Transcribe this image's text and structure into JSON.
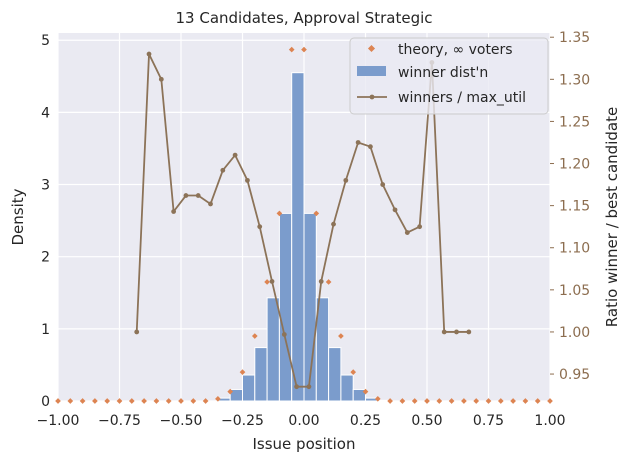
{
  "chart_data": {
    "type": "bar",
    "title": "13 Candidates, Approval Strategic",
    "xlabel": "Issue position",
    "ylabel": "Density",
    "y2label": "Ratio winner / best candidate",
    "xlim": [
      -1.0,
      1.0
    ],
    "ylim": [
      0,
      5.1
    ],
    "y2lim": [
      0.918,
      1.355
    ],
    "x_ticks": [
      "−1.00",
      "−0.75",
      "−0.50",
      "−0.25",
      "0.00",
      "0.25",
      "0.50",
      "0.75",
      "1.00"
    ],
    "y_ticks": [
      "0",
      "1",
      "2",
      "3",
      "4",
      "5"
    ],
    "y2_ticks": [
      "0.95",
      "1.00",
      "1.05",
      "1.10",
      "1.15",
      "1.20",
      "1.25",
      "1.30",
      "1.35"
    ],
    "grid": true,
    "legend_position": "top-right",
    "colors": {
      "bar": "#7b9ccc",
      "theory": "#dd8452",
      "line": "#8c7358",
      "background": "#eaeaf2",
      "right_axis": "#8c6d4f"
    },
    "series": [
      {
        "name": "theory, ∞ voters",
        "kind": "scatter",
        "axis": "left",
        "x": [
          -1.0,
          -0.95,
          -0.9,
          -0.85,
          -0.8,
          -0.75,
          -0.7,
          -0.65,
          -0.6,
          -0.55,
          -0.5,
          -0.45,
          -0.4,
          -0.35,
          -0.3,
          -0.25,
          -0.2,
          -0.15,
          -0.1,
          -0.05,
          0.0,
          0.05,
          0.1,
          0.15,
          0.2,
          0.25,
          0.3,
          0.35,
          0.4,
          0.45,
          0.5,
          0.55,
          0.6,
          0.65,
          0.7,
          0.75,
          0.8,
          0.85,
          0.9,
          0.95,
          1.0
        ],
        "y": [
          0,
          0,
          0,
          0,
          0,
          0,
          0,
          0,
          0,
          0,
          0,
          0,
          0,
          0.03,
          0.13,
          0.4,
          0.9,
          1.65,
          2.6,
          4.87,
          4.87,
          2.6,
          1.65,
          0.9,
          0.4,
          0.13,
          0.03,
          0,
          0,
          0,
          0,
          0,
          0,
          0,
          0,
          0,
          0,
          0,
          0,
          0,
          0
        ]
      },
      {
        "name": "winner dist'n",
        "kind": "bar",
        "axis": "left",
        "bin_edges": [
          -0.35,
          -0.3,
          -0.25,
          -0.2,
          -0.15,
          -0.1,
          -0.05,
          0.0,
          0.05,
          0.1,
          0.15,
          0.2,
          0.25,
          0.3,
          0.35
        ],
        "values": [
          0.04,
          0.16,
          0.36,
          0.74,
          1.43,
          2.6,
          4.55,
          2.6,
          1.43,
          0.74,
          0.36,
          0.16,
          0.04,
          0.01
        ]
      },
      {
        "name": "winners / max_util",
        "kind": "line",
        "axis": "right",
        "x": [
          -0.68,
          -0.63,
          -0.58,
          -0.53,
          -0.48,
          -0.43,
          -0.38,
          -0.33,
          -0.28,
          -0.23,
          -0.18,
          -0.13,
          -0.08,
          -0.03,
          0.02,
          0.07,
          0.12,
          0.17,
          0.22,
          0.27,
          0.32,
          0.37,
          0.42,
          0.47,
          0.52,
          0.57,
          0.62,
          0.67
        ],
        "y": [
          1.0,
          1.33,
          1.3,
          1.143,
          1.162,
          1.162,
          1.152,
          1.192,
          1.21,
          1.18,
          1.125,
          1.06,
          0.997,
          0.935,
          0.935,
          1.06,
          1.128,
          1.18,
          1.225,
          1.22,
          1.175,
          1.145,
          1.118,
          1.125,
          1.32,
          1.0,
          1.0,
          1.0
        ]
      }
    ]
  }
}
